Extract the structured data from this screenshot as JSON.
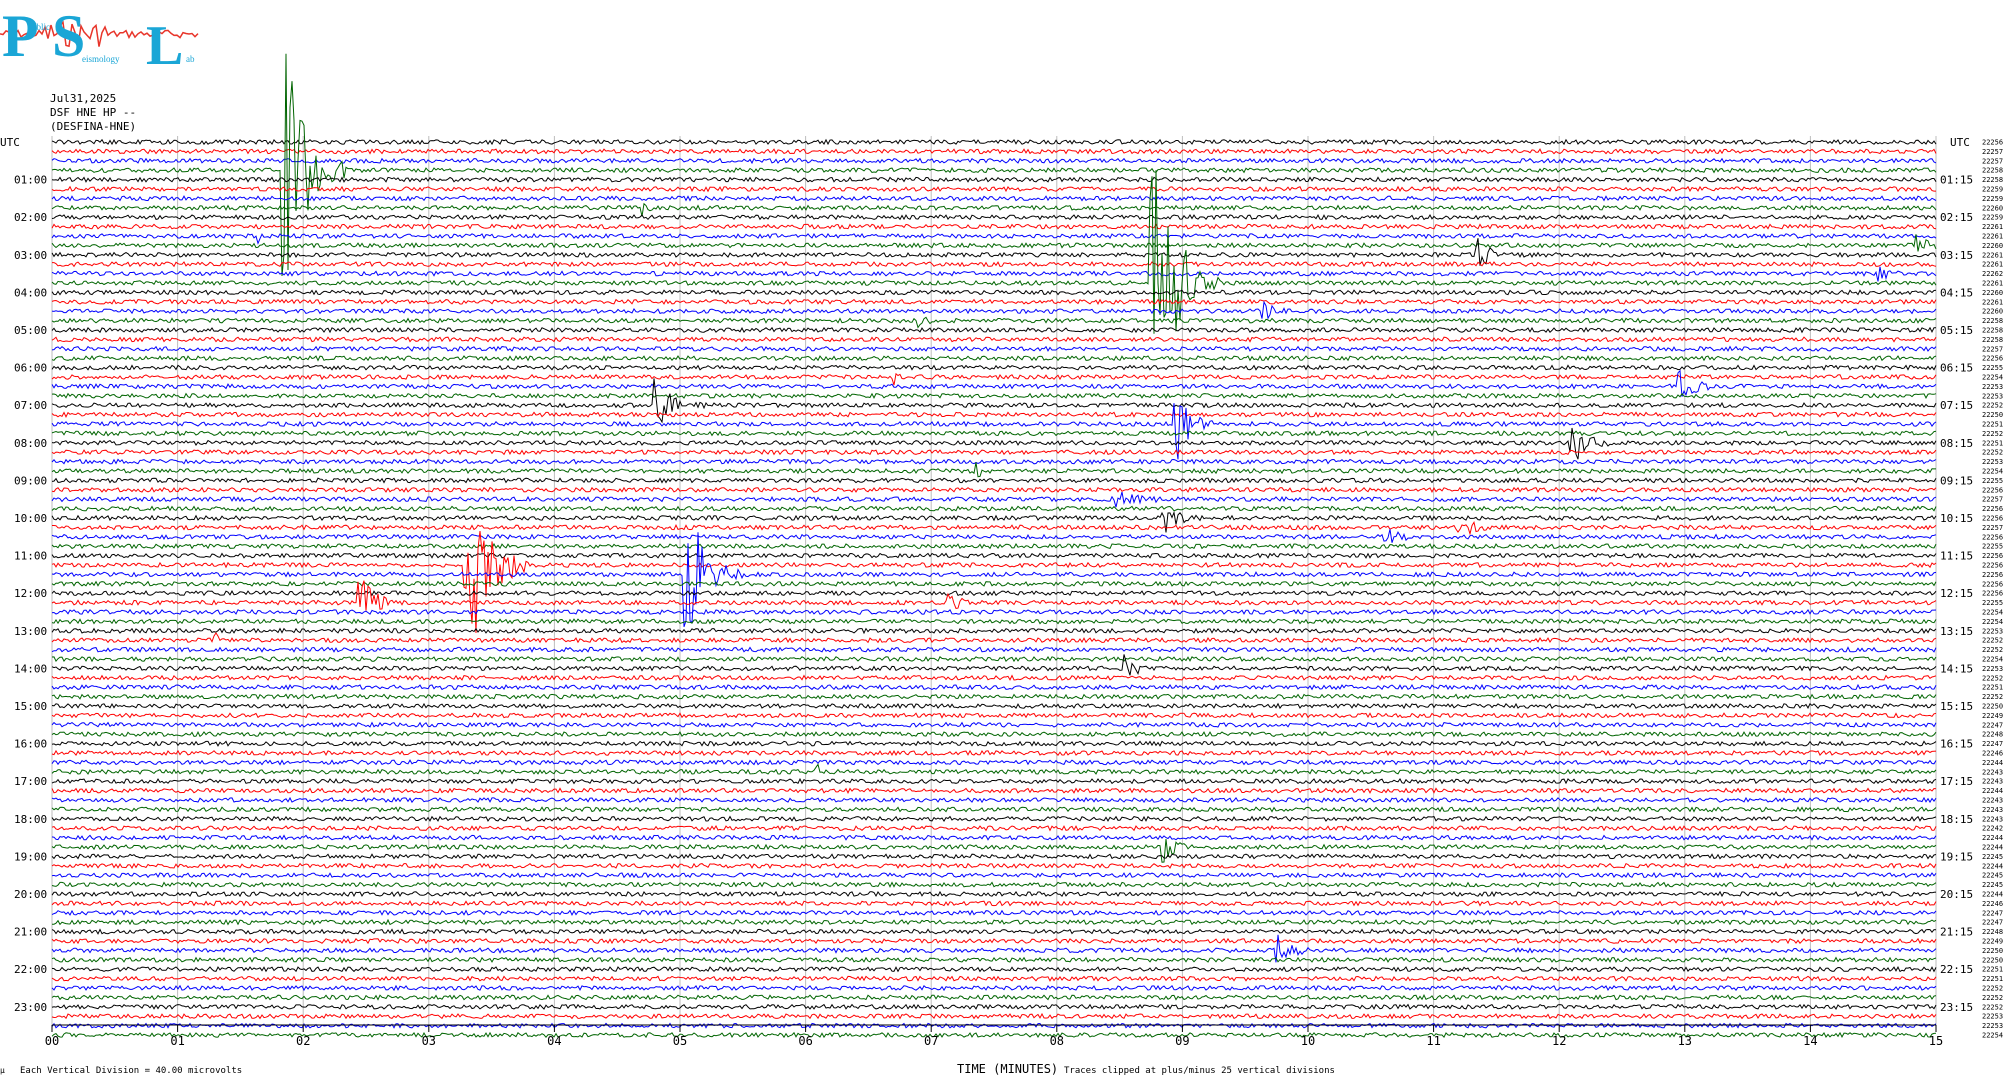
{
  "logo": {
    "letters": [
      "P",
      "S",
      "L"
    ],
    "small_text": [
      "ublic",
      "eismology",
      "ab"
    ],
    "color": "#1aa6d6",
    "wave_color": "#e8352a"
  },
  "header": {
    "date": "Jul31,2025",
    "station": "DSF HNE HP --",
    "channel": "(DESFINA-HNE)"
  },
  "footer": {
    "scale_note": "Each Vertical Division =    40.00 microvolts",
    "xlabel": "TIME (MINUTES)",
    "clip_note": "Traces clipped at plus/minus 25 vertical divisions",
    "corner_mark": "µ"
  },
  "chart_data": {
    "type": "line",
    "title": "",
    "xlabel": "TIME (MINUTES)",
    "ylabel": "UTC",
    "xlim": [
      0,
      15
    ],
    "x_ticks": [
      "00",
      "01",
      "02",
      "03",
      "04",
      "05",
      "06",
      "07",
      "08",
      "09",
      "10",
      "11",
      "12",
      "13",
      "14",
      "15"
    ],
    "left_axis_label": "UTC",
    "right_axis_label": "UTC",
    "left_labels": [
      "01:00",
      "02:00",
      "03:00",
      "04:00",
      "05:00",
      "06:00",
      "07:00",
      "08:00",
      "09:00",
      "10:00",
      "11:00",
      "12:00",
      "13:00",
      "14:00",
      "15:00",
      "16:00",
      "17:00",
      "18:00",
      "19:00",
      "20:00",
      "21:00",
      "22:00",
      "23:00"
    ],
    "right_labels": [
      "01:15",
      "02:15",
      "03:15",
      "04:15",
      "05:15",
      "06:15",
      "07:15",
      "08:15",
      "09:15",
      "10:15",
      "11:15",
      "12:15",
      "13:15",
      "14:15",
      "15:15",
      "16:15",
      "17:15",
      "18:15",
      "19:15",
      "20:15",
      "21:15",
      "22:15",
      "23:15"
    ],
    "trace_count": 96,
    "trace_minutes": 15,
    "trace_colors": [
      "#000000",
      "#ff0000",
      "#0000ff",
      "#006400"
    ],
    "grid": true,
    "row_counts": [
      22256,
      22257,
      22257,
      22258,
      22258,
      22259,
      22259,
      22260,
      22259,
      22261,
      22261,
      22260,
      22261,
      22261,
      22262,
      22261,
      22260,
      22261,
      22260,
      22258,
      22258,
      22258,
      22257,
      22256,
      22255,
      22254,
      22253,
      22253,
      22252,
      22250,
      22251,
      22252,
      22251,
      22252,
      22253,
      22254,
      22255,
      22256,
      22257,
      22256,
      22256,
      22257,
      22256,
      22255,
      22256,
      22256,
      22256,
      22256,
      22256,
      22255,
      22254,
      22254,
      22253,
      22252,
      22252,
      22254,
      22253,
      22252,
      22251,
      22252,
      22250,
      22249,
      22247,
      22248,
      22247,
      22246,
      22244,
      22243,
      22243,
      22244,
      22243,
      22243,
      22243,
      22242,
      22244,
      22244,
      22245,
      22244,
      22245,
      22245,
      22244,
      22246,
      22247,
      22247,
      22248,
      22249,
      22250,
      22250,
      22251,
      22251,
      22252,
      22252,
      22252,
      22253,
      22253,
      22254
    ],
    "events": [
      {
        "trace": 3,
        "minute": 1.85,
        "amp": 140,
        "dur": 0.5
      },
      {
        "trace": 10,
        "minute": 1.65,
        "amp": 6,
        "dur": 0.08
      },
      {
        "trace": 12,
        "minute": 11.35,
        "amp": 18,
        "dur": 0.25
      },
      {
        "trace": 14,
        "minute": 14.55,
        "amp": 8,
        "dur": 0.15
      },
      {
        "trace": 7,
        "minute": 4.7,
        "amp": 7,
        "dur": 0.1
      },
      {
        "trace": 11,
        "minute": 14.85,
        "amp": 10,
        "dur": 0.25
      },
      {
        "trace": 15,
        "minute": 8.75,
        "amp": 170,
        "dur": 0.55
      },
      {
        "trace": 18,
        "minute": 9.65,
        "amp": 9,
        "dur": 0.2
      },
      {
        "trace": 19,
        "minute": 6.9,
        "amp": 9,
        "dur": 0.15
      },
      {
        "trace": 25,
        "minute": 6.7,
        "amp": 8,
        "dur": 0.12
      },
      {
        "trace": 26,
        "minute": 12.95,
        "amp": 20,
        "dur": 0.3
      },
      {
        "trace": 28,
        "minute": 4.8,
        "amp": 28,
        "dur": 0.4
      },
      {
        "trace": 30,
        "minute": 8.95,
        "amp": 40,
        "dur": 0.3
      },
      {
        "trace": 32,
        "minute": 12.1,
        "amp": 25,
        "dur": 0.3
      },
      {
        "trace": 35,
        "minute": 7.35,
        "amp": 8,
        "dur": 0.15
      },
      {
        "trace": 38,
        "minute": 8.45,
        "amp": 10,
        "dur": 0.5
      },
      {
        "trace": 40,
        "minute": 8.85,
        "amp": 16,
        "dur": 0.3
      },
      {
        "trace": 41,
        "minute": 11.2,
        "amp": 14,
        "dur": 0.3
      },
      {
        "trace": 42,
        "minute": 10.6,
        "amp": 10,
        "dur": 0.3
      },
      {
        "trace": 45,
        "minute": 3.3,
        "amp": 120,
        "dur": 0.5
      },
      {
        "trace": 46,
        "minute": 5.05,
        "amp": 80,
        "dur": 0.45
      },
      {
        "trace": 49,
        "minute": 2.45,
        "amp": 30,
        "dur": 0.35
      },
      {
        "trace": 49,
        "minute": 7.15,
        "amp": 10,
        "dur": 0.2
      },
      {
        "trace": 53,
        "minute": 1.3,
        "amp": 7,
        "dur": 0.15
      },
      {
        "trace": 56,
        "minute": 8.55,
        "amp": 16,
        "dur": 0.2
      },
      {
        "trace": 67,
        "minute": 6.1,
        "amp": 6,
        "dur": 0.12
      },
      {
        "trace": 75,
        "minute": 8.85,
        "amp": 14,
        "dur": 0.25
      },
      {
        "trace": 86,
        "minute": 9.75,
        "amp": 18,
        "dur": 0.3
      }
    ]
  }
}
